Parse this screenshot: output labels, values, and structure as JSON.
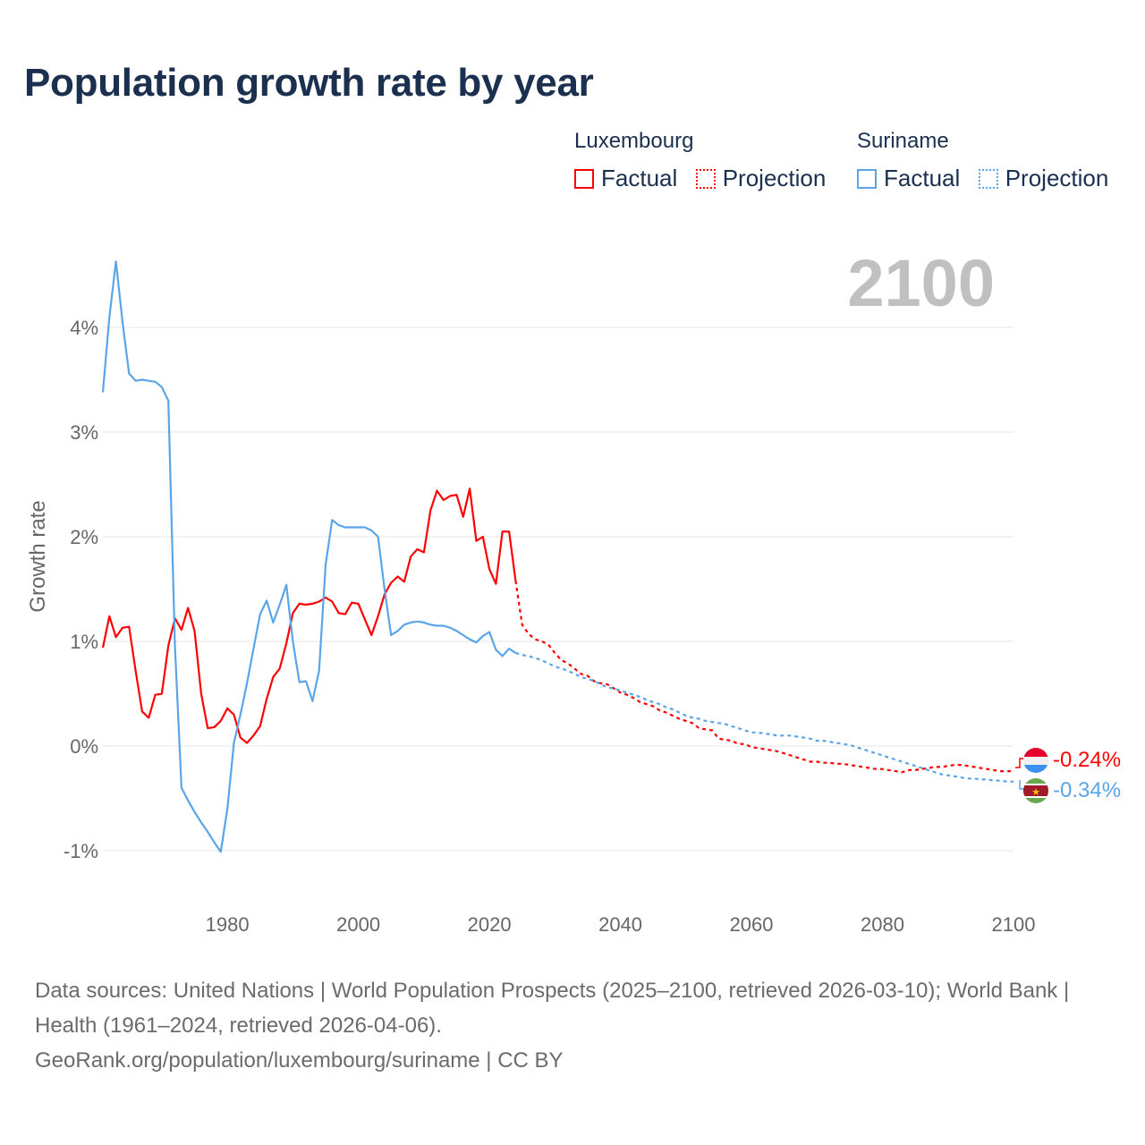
{
  "title": "Population growth rate by year",
  "legend": {
    "groups": [
      {
        "name": "Luxembourg",
        "color": "#ff0000",
        "factual": "Factual",
        "projection": "Projection"
      },
      {
        "name": "Suriname",
        "color": "#5aa5ea",
        "factual": "Factual",
        "projection": "Projection"
      }
    ]
  },
  "current_year": "2100",
  "end_labels": {
    "luxembourg": "-0.24%",
    "suriname": "-0.34%"
  },
  "source": {
    "line1": "Data sources: United Nations | World Population Prospects (2025–2100, retrieved 2026-03-10); World Bank | Health (1961–2024, retrieved 2026-04-06).",
    "line2": "GeoRank.org/population/luxembourg/suriname | CC BY"
  },
  "chart_data": {
    "type": "line",
    "title": "Population growth rate by year",
    "xlabel": "",
    "ylabel": "Growth rate",
    "xlim": [
      1961,
      2100
    ],
    "ylim": [
      -1.5,
      4.8
    ],
    "xticks": [
      1980,
      2000,
      2020,
      2040,
      2060,
      2080,
      2100
    ],
    "xtick_labels": [
      "1980",
      "2000",
      "2020",
      "2040",
      "2060",
      "2080",
      "2100"
    ],
    "yticks": [
      -1,
      0,
      1,
      2,
      3,
      4
    ],
    "ytick_labels": [
      "-1%",
      "0%",
      "1%",
      "2%",
      "3%",
      "4%"
    ],
    "grid": true,
    "legend_position": "top-right",
    "series": [
      {
        "name": "Luxembourg",
        "color": "#ff0000",
        "factual_start": 1961,
        "factual": [
          0.94,
          1.24,
          1.04,
          1.13,
          1.14,
          0.72,
          0.33,
          0.27,
          0.49,
          0.5,
          0.96,
          1.22,
          1.11,
          1.32,
          1.1,
          0.5,
          0.17,
          0.18,
          0.24,
          0.36,
          0.3,
          0.08,
          0.03,
          0.1,
          0.19,
          0.45,
          0.66,
          0.74,
          0.98,
          1.27,
          1.36,
          1.35,
          1.36,
          1.38,
          1.42,
          1.38,
          1.27,
          1.26,
          1.37,
          1.36,
          1.21,
          1.06,
          1.24,
          1.45,
          1.56,
          1.62,
          1.57,
          1.81,
          1.88,
          1.85,
          2.25,
          2.44,
          2.35,
          2.39,
          2.4,
          2.19,
          2.46,
          1.96,
          2.0,
          1.69,
          1.55,
          2.05,
          2.05,
          1.58
        ],
        "projection_start": 2025,
        "projection": [
          1.16,
          1.07,
          1.02,
          1.0,
          0.97,
          0.89,
          0.82,
          0.79,
          0.74,
          0.69,
          0.67,
          0.62,
          0.6,
          0.59,
          0.55,
          0.51,
          0.49,
          0.46,
          0.42,
          0.4,
          0.38,
          0.34,
          0.32,
          0.29,
          0.26,
          0.24,
          0.22,
          0.17,
          0.16,
          0.15,
          0.07,
          0.06,
          0.05,
          0.02,
          0.02,
          -0.01,
          -0.02,
          -0.03,
          -0.04,
          -0.05,
          -0.07,
          -0.09,
          -0.11,
          -0.13,
          -0.15,
          -0.15,
          -0.16,
          -0.16,
          -0.17,
          -0.17,
          -0.18,
          -0.19,
          -0.2,
          -0.21,
          -0.22,
          -0.22,
          -0.23,
          -0.24,
          -0.25,
          -0.23,
          -0.23,
          -0.22,
          -0.21,
          -0.2,
          -0.2,
          -0.19,
          -0.18,
          -0.18,
          -0.19,
          -0.2,
          -0.21,
          -0.22,
          -0.23,
          -0.24,
          -0.24,
          -0.24
        ]
      },
      {
        "name": "Suriname",
        "color": "#5aa5ea",
        "factual_start": 1961,
        "factual": [
          3.38,
          4.1,
          4.63,
          4.05,
          3.56,
          3.49,
          3.5,
          3.49,
          3.48,
          3.43,
          3.3,
          0.95,
          -0.4,
          -0.52,
          -0.63,
          -0.73,
          -0.82,
          -0.92,
          -1.01,
          -0.6,
          0.03,
          0.3,
          0.6,
          0.93,
          1.26,
          1.39,
          1.18,
          1.35,
          1.54,
          1.0,
          0.61,
          0.62,
          0.43,
          0.72,
          1.73,
          2.16,
          2.11,
          2.09,
          2.09,
          2.09,
          2.09,
          2.06,
          2.0,
          1.5,
          1.06,
          1.1,
          1.16,
          1.18,
          1.19,
          1.18,
          1.16,
          1.15,
          1.15,
          1.13,
          1.1,
          1.06,
          1.02,
          0.99,
          1.05,
          1.09,
          0.92,
          0.86,
          0.93,
          0.89
        ],
        "projection_start": 2025,
        "projection": [
          0.87,
          0.86,
          0.84,
          0.82,
          0.79,
          0.76,
          0.74,
          0.72,
          0.69,
          0.66,
          0.64,
          0.62,
          0.59,
          0.56,
          0.55,
          0.53,
          0.51,
          0.49,
          0.47,
          0.44,
          0.42,
          0.4,
          0.37,
          0.35,
          0.32,
          0.29,
          0.27,
          0.26,
          0.24,
          0.23,
          0.22,
          0.21,
          0.19,
          0.17,
          0.15,
          0.13,
          0.13,
          0.12,
          0.11,
          0.1,
          0.1,
          0.1,
          0.09,
          0.08,
          0.07,
          0.05,
          0.05,
          0.04,
          0.03,
          0.02,
          0.01,
          -0.01,
          -0.03,
          -0.05,
          -0.07,
          -0.09,
          -0.11,
          -0.13,
          -0.15,
          -0.17,
          -0.19,
          -0.21,
          -0.23,
          -0.25,
          -0.27,
          -0.28,
          -0.29,
          -0.3,
          -0.31,
          -0.31,
          -0.32,
          -0.32,
          -0.33,
          -0.33,
          -0.34,
          -0.34
        ]
      }
    ]
  }
}
